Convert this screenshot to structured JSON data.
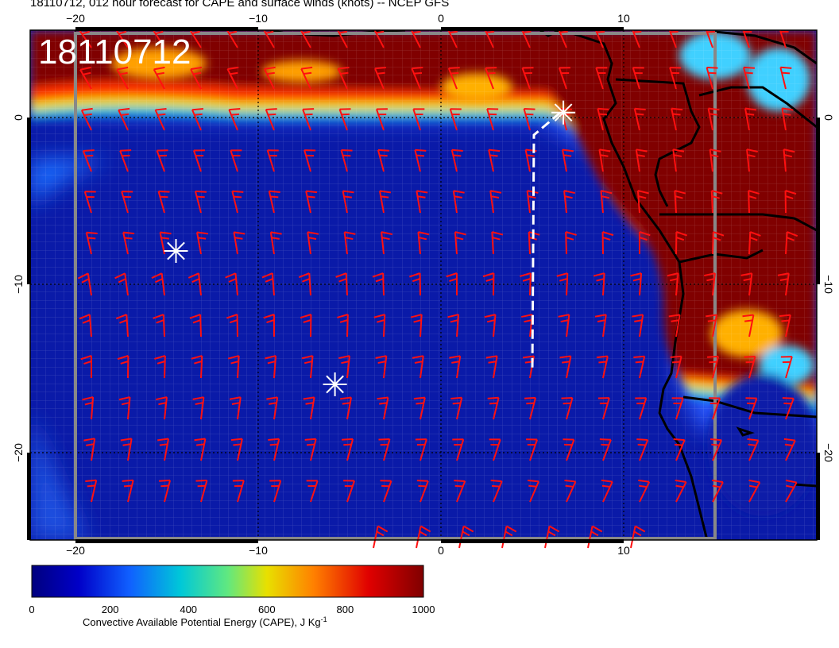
{
  "page_title": "18110712, 012 hour forecast for CAPE and surface winds (knots) -- NCEP GFS",
  "map_stamp": "18110712",
  "colorbar": {
    "label_main": "Convective Available Potential Energy (CAPE), J Kg",
    "label_sup": "-1",
    "min": 0,
    "max": 1000,
    "ticks": [
      "0",
      "200",
      "400",
      "600",
      "800",
      "1000"
    ],
    "colors": [
      "#00007f",
      "#0000c8",
      "#1060ff",
      "#00c8d8",
      "#60e880",
      "#e8e000",
      "#ff8000",
      "#e00000",
      "#800000"
    ]
  },
  "chart_data": {
    "type": "map",
    "title": "18110712, 012 hour forecast for CAPE and surface winds (knots) -- NCEP GFS",
    "x_ticks": [
      "−20",
      "−10",
      "0",
      "10"
    ],
    "y_ticks": [
      "0",
      "−10",
      "−20"
    ],
    "lon_range": [
      -22.5,
      20
    ],
    "lat_range": [
      -25.5,
      5
    ],
    "variable": "CAPE",
    "units": "J Kg-1",
    "wind_units": "knots",
    "markers": [
      {
        "symbol": "asterisk",
        "lon": -14.5,
        "lat": -8
      },
      {
        "symbol": "asterisk",
        "lon": -5.8,
        "lat": -16
      },
      {
        "symbol": "asterisk",
        "lon": 6.7,
        "lat": 0.3
      }
    ],
    "track_dashed": [
      [
        6.7,
        0.3
      ],
      [
        5,
        -1
      ],
      [
        5,
        -15
      ]
    ]
  }
}
